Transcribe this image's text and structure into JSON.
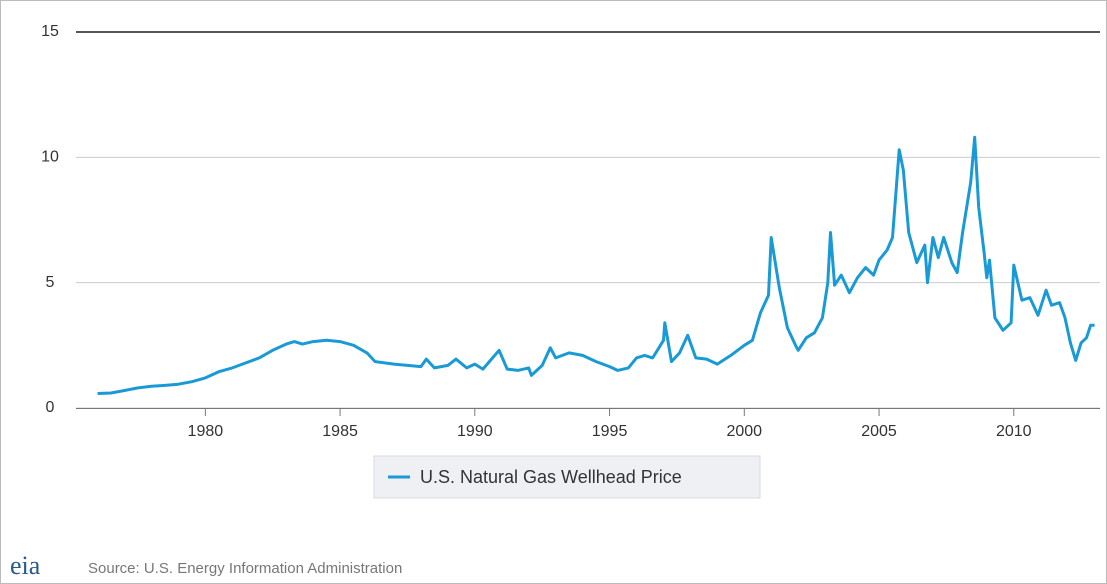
{
  "chart_data": {
    "type": "line",
    "x": [
      1976.0,
      1976.5,
      1977,
      1977.5,
      1978,
      1978.5,
      1979,
      1979.5,
      1980,
      1980.5,
      1981,
      1981.5,
      1982,
      1982.5,
      1983,
      1983.3,
      1983.6,
      1984,
      1984.5,
      1985,
      1985.5,
      1986,
      1986.3,
      1987,
      1987.5,
      1988,
      1988.2,
      1988.5,
      1989,
      1989.3,
      1989.7,
      1990,
      1990.3,
      1990.9,
      1991.2,
      1991.6,
      1992,
      1992.1,
      1992.5,
      1992.8,
      1993,
      1993.5,
      1994,
      1994.5,
      1995,
      1995.3,
      1995.7,
      1996,
      1996.3,
      1996.6,
      1997,
      1997.05,
      1997.3,
      1997.6,
      1997.9,
      1998.2,
      1998.6,
      1999,
      1999.5,
      2000,
      2000.3,
      2000.6,
      2000.9,
      2001.0,
      2001.3,
      2001.6,
      2001.9,
      2002,
      2002.3,
      2002.6,
      2002.9,
      2003.1,
      2003.2,
      2003.35,
      2003.6,
      2003.9,
      2004.2,
      2004.5,
      2004.8,
      2005,
      2005.3,
      2005.5,
      2005.75,
      2005.9,
      2006.1,
      2006.4,
      2006.7,
      2006.8,
      2007,
      2007.2,
      2007.4,
      2007.7,
      2007.9,
      2008.1,
      2008.4,
      2008.55,
      2008.7,
      2008.9,
      2009.0,
      2009.1,
      2009.3,
      2009.6,
      2009.9,
      2010.0,
      2010.3,
      2010.6,
      2010.9,
      2011.2,
      2011.4,
      2011.7,
      2011.9,
      2012.1,
      2012.3,
      2012.5,
      2012.7,
      2012.85,
      2013.0
    ],
    "series": [
      {
        "name": "U.S. Natural Gas Wellhead Price",
        "color": "#199ad6",
        "values": [
          0.58,
          0.6,
          0.7,
          0.8,
          0.87,
          0.9,
          0.95,
          1.05,
          1.2,
          1.45,
          1.6,
          1.8,
          2.0,
          2.3,
          2.55,
          2.65,
          2.55,
          2.65,
          2.7,
          2.65,
          2.5,
          2.2,
          1.85,
          1.75,
          1.7,
          1.65,
          1.95,
          1.6,
          1.7,
          1.95,
          1.6,
          1.75,
          1.55,
          2.3,
          1.55,
          1.5,
          1.6,
          1.3,
          1.7,
          2.4,
          2.0,
          2.2,
          2.1,
          1.85,
          1.65,
          1.5,
          1.6,
          2.0,
          2.1,
          2.0,
          2.7,
          3.4,
          1.85,
          2.2,
          2.9,
          2.0,
          1.95,
          1.75,
          2.1,
          2.5,
          2.7,
          3.8,
          4.5,
          6.8,
          4.8,
          3.2,
          2.5,
          2.3,
          2.8,
          3.0,
          3.6,
          5.0,
          7.0,
          4.9,
          5.3,
          4.6,
          5.2,
          5.6,
          5.3,
          5.9,
          6.3,
          6.8,
          10.3,
          9.5,
          7.0,
          5.8,
          6.5,
          5.0,
          6.8,
          6.0,
          6.8,
          5.8,
          5.4,
          7.0,
          9.0,
          10.8,
          8.0,
          6.2,
          5.2,
          5.9,
          3.6,
          3.1,
          3.4,
          5.7,
          4.3,
          4.4,
          3.7,
          4.7,
          4.1,
          4.2,
          3.6,
          2.6,
          1.9,
          2.6,
          2.8,
          3.3,
          3.3
        ]
      }
    ],
    "xlim": [
      1975.2,
      2013.2
    ],
    "xticks": [
      1980,
      1985,
      1990,
      1995,
      2000,
      2005,
      2010
    ],
    "ylim": [
      0,
      15
    ],
    "yticks": [
      0,
      5,
      10,
      15
    ],
    "grid": true,
    "legend": "bottom",
    "source": "Source: U.S. Energy Information Administration",
    "logo": "eia"
  }
}
